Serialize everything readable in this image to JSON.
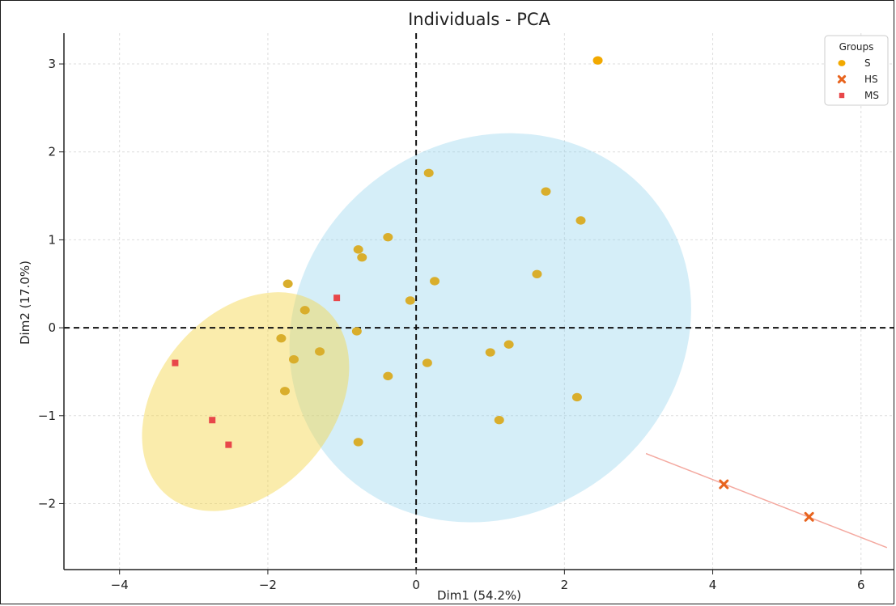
{
  "chart_data": {
    "type": "scatter",
    "title": "Individuals - PCA",
    "xlabel": "Dim1 (54.2%)",
    "ylabel": "Dim2 (17.0%)",
    "xlim": [
      -4.75,
      6.45
    ],
    "ylim": [
      -2.75,
      3.35
    ],
    "xticks": [
      -4,
      -2,
      0,
      2,
      4,
      6
    ],
    "yticks": [
      -2,
      -1,
      0,
      1,
      2,
      3
    ],
    "grid": true,
    "reference_lines": {
      "x": 0,
      "y": 0,
      "style": "dashed"
    },
    "legend": {
      "title": "Groups",
      "position": "top-right"
    },
    "series": [
      {
        "name": "S",
        "marker": "circle",
        "color": "#F2A900",
        "points": [
          [
            2.45,
            3.04
          ],
          [
            0.17,
            1.76
          ],
          [
            1.75,
            1.55
          ],
          [
            2.22,
            1.22
          ],
          [
            -0.38,
            1.03
          ],
          [
            -0.78,
            0.89
          ],
          [
            -0.73,
            0.8
          ],
          [
            1.63,
            0.61
          ],
          [
            -1.73,
            0.5
          ],
          [
            0.25,
            0.53
          ],
          [
            -0.08,
            0.31
          ],
          [
            -1.5,
            0.2
          ],
          [
            -0.8,
            -0.04
          ],
          [
            -1.82,
            -0.12
          ],
          [
            -1.65,
            -0.36
          ],
          [
            -1.3,
            -0.27
          ],
          [
            1.0,
            -0.28
          ],
          [
            1.25,
            -0.19
          ],
          [
            0.15,
            -0.4
          ],
          [
            -0.38,
            -0.55
          ],
          [
            2.17,
            -0.79
          ],
          [
            -1.77,
            -0.72
          ],
          [
            1.12,
            -1.05
          ],
          [
            -0.78,
            -1.3
          ]
        ]
      },
      {
        "name": "HS",
        "marker": "x",
        "color": "#E8641E",
        "points": [
          [
            4.15,
            -1.78
          ],
          [
            5.3,
            -2.15
          ]
        ]
      },
      {
        "name": "MS",
        "marker": "square",
        "color": "#E8474A",
        "points": [
          [
            -1.07,
            0.34
          ],
          [
            -3.25,
            -0.4
          ],
          [
            -2.75,
            -1.05
          ],
          [
            -2.53,
            -1.33
          ]
        ]
      }
    ],
    "ellipses": [
      {
        "group": "S",
        "color": "#87CEEB",
        "opacity": 0.35,
        "cx": 1.0,
        "cy": 0.0,
        "rx": 2.8,
        "ry": 2.13,
        "angle": 36
      },
      {
        "group": "MS",
        "color": "#F5D547",
        "opacity": 0.45,
        "cx": -2.3,
        "cy": -0.84,
        "rx": 1.65,
        "ry": 1.0,
        "angle": 50
      }
    ],
    "hs_line": {
      "color": "#F4A9A0",
      "from": [
        3.1,
        -1.43
      ],
      "to": [
        6.35,
        -2.5
      ]
    }
  }
}
